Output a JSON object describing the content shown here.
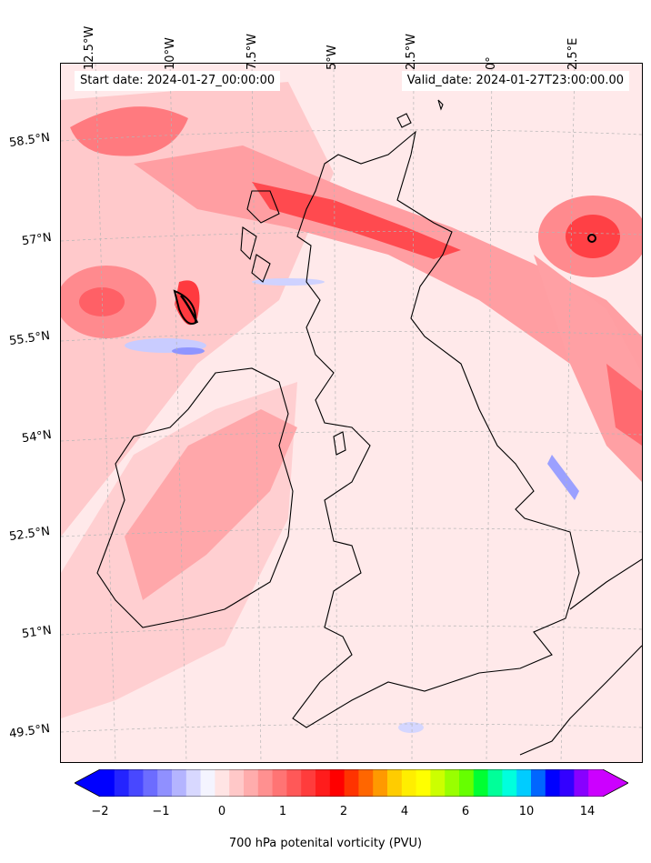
{
  "header": {
    "start_date": "Start date: 2024-01-27_00:00:00",
    "valid_date": "Valid_date: 2024-01-27T23:00:00.00"
  },
  "longitude_labels": [
    "12.5°W",
    "10°W",
    "7.5°W",
    "5°W",
    "2.5°W",
    "0°",
    "2.5°E"
  ],
  "latitude_labels": [
    "58.5°N",
    "57°N",
    "55.5°N",
    "54°N",
    "52.5°N",
    "51°N",
    "49.5°N"
  ],
  "colorbar": {
    "label": "700 hPa potenital vorticity (PVU)",
    "ticks": [
      "−2",
      "−1",
      "0",
      "1",
      "2",
      "4",
      "6",
      "10",
      "14"
    ],
    "colors": [
      "#0000ff",
      "#2424ff",
      "#4848ff",
      "#6c6cff",
      "#9090ff",
      "#b4b4ff",
      "#d8d8ff",
      "#f4f4ff",
      "#ffe4e4",
      "#ffc8c8",
      "#ffacac",
      "#ff9090",
      "#ff7474",
      "#ff5858",
      "#ff3c3c",
      "#ff1c1c",
      "#ff0000",
      "#ff3300",
      "#ff6600",
      "#ff9900",
      "#ffcc00",
      "#ffee00",
      "#ffff00",
      "#ccff00",
      "#99ff00",
      "#66ff00",
      "#00ff33",
      "#00ff99",
      "#00ffdd",
      "#00ccff",
      "#0066ff",
      "#0000ff",
      "#3300ff",
      "#8800ff",
      "#cc00ff"
    ],
    "min_color": "#0000ff",
    "max_color": "#cc00ff"
  }
}
